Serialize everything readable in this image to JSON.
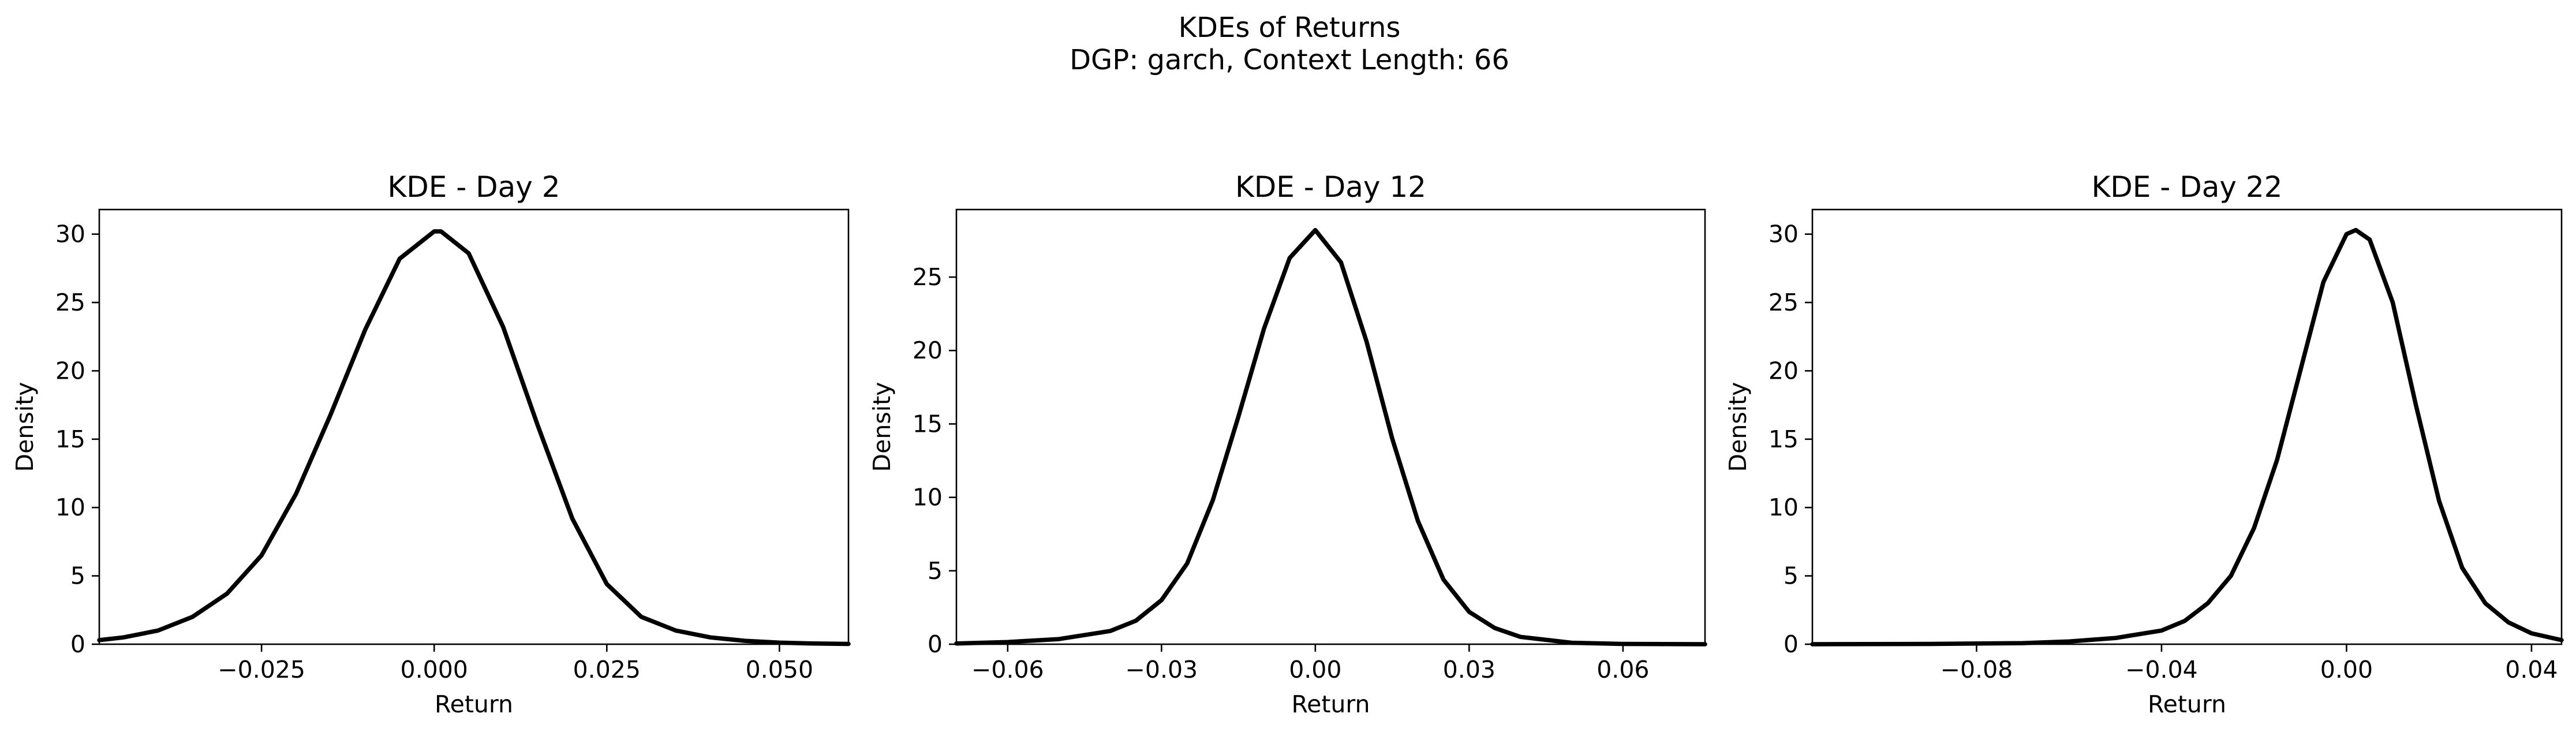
{
  "figure": {
    "title_line1": "KDEs of Returns",
    "title_line2": "DGP: garch, Context Length: 66"
  },
  "chart_data": [
    {
      "type": "line",
      "title": "KDE - Day 2",
      "xlabel": "Return",
      "ylabel": "Density",
      "xlim": [
        -0.0485,
        0.06
      ],
      "ylim": [
        0,
        31.8
      ],
      "xticks": [
        -0.025,
        0.0,
        0.025,
        0.05
      ],
      "xtick_labels": [
        "−0.025",
        "0.000",
        "0.025",
        "0.050"
      ],
      "yticks": [
        0,
        5,
        10,
        15,
        20,
        25,
        30
      ],
      "ytick_labels": [
        "0",
        "5",
        "10",
        "15",
        "20",
        "25",
        "30"
      ],
      "grid": false,
      "line_color": "#000000",
      "series": [
        {
          "x": [
            -0.0485,
            -0.045,
            -0.04,
            -0.035,
            -0.03,
            -0.025,
            -0.02,
            -0.015,
            -0.01,
            -0.005,
            0.0,
            0.001,
            0.005,
            0.01,
            0.015,
            0.02,
            0.025,
            0.03,
            0.035,
            0.04,
            0.045,
            0.05,
            0.055,
            0.06
          ],
          "y": [
            0.3,
            0.5,
            1.0,
            2.0,
            3.7,
            6.5,
            11.0,
            16.8,
            23.0,
            28.2,
            30.2,
            30.2,
            28.6,
            23.2,
            16.0,
            9.2,
            4.4,
            2.0,
            1.0,
            0.5,
            0.25,
            0.12,
            0.05,
            0.02
          ]
        }
      ]
    },
    {
      "type": "line",
      "title": "KDE - Day 12",
      "xlabel": "Return",
      "ylabel": "Density",
      "xlim": [
        -0.07,
        0.076
      ],
      "ylim": [
        0,
        29.6
      ],
      "xticks": [
        -0.06,
        -0.03,
        0.0,
        0.03,
        0.06
      ],
      "xtick_labels": [
        "−0.06",
        "−0.03",
        "0.00",
        "0.03",
        "0.06"
      ],
      "yticks": [
        0,
        5,
        10,
        15,
        20,
        25
      ],
      "ytick_labels": [
        "0",
        "5",
        "10",
        "15",
        "20",
        "25"
      ],
      "grid": false,
      "line_color": "#000000",
      "series": [
        {
          "x": [
            -0.07,
            -0.06,
            -0.05,
            -0.04,
            -0.035,
            -0.03,
            -0.025,
            -0.02,
            -0.015,
            -0.01,
            -0.005,
            0.0,
            0.005,
            0.01,
            0.015,
            0.02,
            0.025,
            0.03,
            0.035,
            0.04,
            0.05,
            0.06,
            0.076
          ],
          "y": [
            0.05,
            0.15,
            0.35,
            0.9,
            1.6,
            3.0,
            5.5,
            9.8,
            15.5,
            21.5,
            26.3,
            28.2,
            26.0,
            20.6,
            14.0,
            8.4,
            4.4,
            2.2,
            1.1,
            0.5,
            0.1,
            0.02,
            0.0
          ]
        }
      ]
    },
    {
      "type": "line",
      "title": "KDE - Day 22",
      "xlabel": "Return",
      "ylabel": "Density",
      "xlim": [
        -0.1155,
        0.0465
      ],
      "ylim": [
        0,
        31.8
      ],
      "xticks": [
        -0.08,
        -0.04,
        0.0,
        0.04
      ],
      "xtick_labels": [
        "−0.08",
        "−0.04",
        "0.00",
        "0.04"
      ],
      "yticks": [
        0,
        5,
        10,
        15,
        20,
        25,
        30
      ],
      "ytick_labels": [
        "0",
        "5",
        "10",
        "15",
        "20",
        "25",
        "30"
      ],
      "grid": false,
      "line_color": "#000000",
      "series": [
        {
          "x": [
            -0.1155,
            -0.09,
            -0.07,
            -0.06,
            -0.05,
            -0.04,
            -0.035,
            -0.03,
            -0.025,
            -0.02,
            -0.015,
            -0.01,
            -0.005,
            0.0,
            0.002,
            0.005,
            0.01,
            0.015,
            0.02,
            0.025,
            0.03,
            0.035,
            0.04,
            0.0465
          ],
          "y": [
            0.0,
            0.02,
            0.08,
            0.2,
            0.45,
            1.0,
            1.7,
            3.0,
            5.0,
            8.5,
            13.5,
            20.0,
            26.5,
            30.0,
            30.3,
            29.6,
            25.0,
            17.5,
            10.5,
            5.6,
            3.0,
            1.6,
            0.8,
            0.3
          ]
        }
      ]
    }
  ]
}
